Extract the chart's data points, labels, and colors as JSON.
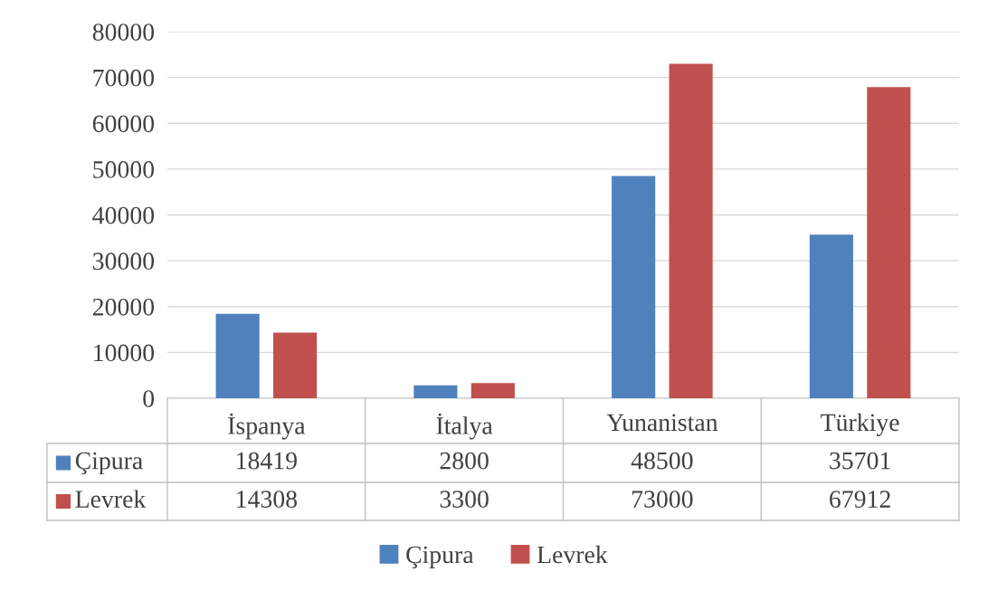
{
  "chart_data": {
    "type": "bar",
    "categories": [
      "İspanya",
      "İtalya",
      "Yunanistan",
      "Türkiye"
    ],
    "series": [
      {
        "name": "Çipura",
        "color": "#4f81bd",
        "values": [
          18419,
          2800,
          48500,
          35701
        ]
      },
      {
        "name": "Levrek",
        "color": "#c0504d",
        "values": [
          14308,
          3300,
          73000,
          67912
        ]
      }
    ],
    "ylim": [
      0,
      80000
    ],
    "yticks": [
      0,
      10000,
      20000,
      30000,
      40000,
      50000,
      60000,
      70000,
      80000
    ],
    "grid": "y",
    "legend": "bottom",
    "data_labels": true
  }
}
